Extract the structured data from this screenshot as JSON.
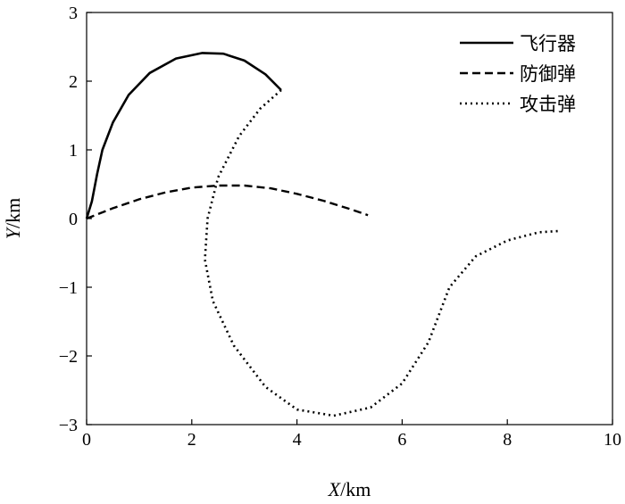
{
  "chart_data": {
    "type": "line",
    "xlabel_var": "X",
    "xlabel_unit": "/km",
    "ylabel_var": "Y",
    "ylabel_unit": "/km",
    "xlim": [
      0,
      10
    ],
    "ylim": [
      -3,
      3
    ],
    "xticks": [
      0,
      2,
      4,
      6,
      8,
      10
    ],
    "yticks": [
      -3,
      -2,
      -1,
      0,
      1,
      2,
      3
    ],
    "grid": false,
    "legend_position": "top-right",
    "series": [
      {
        "name": "飞行器",
        "style": "solid",
        "color": "#000000",
        "points": [
          [
            0,
            0
          ],
          [
            0.1,
            0.25
          ],
          [
            0.2,
            0.65
          ],
          [
            0.3,
            1.0
          ],
          [
            0.5,
            1.4
          ],
          [
            0.8,
            1.8
          ],
          [
            1.2,
            2.12
          ],
          [
            1.7,
            2.33
          ],
          [
            2.2,
            2.41
          ],
          [
            2.6,
            2.4
          ],
          [
            3.0,
            2.3
          ],
          [
            3.4,
            2.1
          ],
          [
            3.7,
            1.87
          ]
        ]
      },
      {
        "name": "防御弹",
        "style": "dashed",
        "color": "#000000",
        "points": [
          [
            0,
            0
          ],
          [
            0.5,
            0.15
          ],
          [
            1.0,
            0.28
          ],
          [
            1.5,
            0.38
          ],
          [
            2.0,
            0.45
          ],
          [
            2.5,
            0.48
          ],
          [
            3.0,
            0.48
          ],
          [
            3.5,
            0.44
          ],
          [
            4.0,
            0.36
          ],
          [
            4.5,
            0.26
          ],
          [
            5.0,
            0.14
          ],
          [
            5.35,
            0.05
          ]
        ]
      },
      {
        "name": "攻击弹",
        "style": "dotted",
        "color": "#000000",
        "points": [
          [
            3.7,
            1.87
          ],
          [
            3.3,
            1.6
          ],
          [
            2.9,
            1.2
          ],
          [
            2.5,
            0.6
          ],
          [
            2.3,
            0.0
          ],
          [
            2.25,
            -0.6
          ],
          [
            2.4,
            -1.2
          ],
          [
            2.8,
            -1.85
          ],
          [
            3.4,
            -2.45
          ],
          [
            4.0,
            -2.78
          ],
          [
            4.7,
            -2.87
          ],
          [
            5.4,
            -2.75
          ],
          [
            6.0,
            -2.4
          ],
          [
            6.5,
            -1.8
          ],
          [
            6.9,
            -1.0
          ],
          [
            7.4,
            -0.55
          ],
          [
            8.0,
            -0.32
          ],
          [
            8.6,
            -0.2
          ],
          [
            9.0,
            -0.18
          ]
        ]
      }
    ]
  }
}
